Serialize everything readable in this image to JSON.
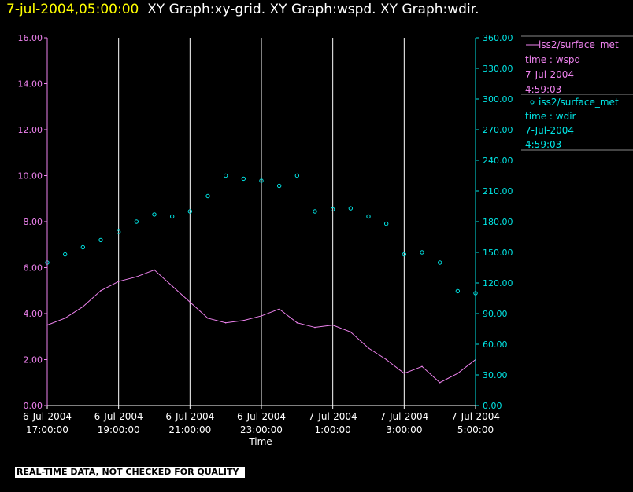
{
  "header": {
    "date": "7-jul-2004,05:00:00",
    "graphs": "XY Graph:xy-grid.  XY Graph:wspd.  XY Graph:wdir."
  },
  "banner": "REAL-TIME DATA, NOT CHECKED FOR QUALITY",
  "colors": {
    "wspd": "#ee82ee",
    "wdir": "#00e5e5",
    "grid": "#ffffff",
    "background": "#000000"
  },
  "chart_data": {
    "type": "line",
    "xlabel": "Time",
    "x_ticks": [
      [
        "6-Jul-2004",
        "17:00:00"
      ],
      [
        "6-Jul-2004",
        "19:00:00"
      ],
      [
        "6-Jul-2004",
        "21:00:00"
      ],
      [
        "6-Jul-2004",
        "23:00:00"
      ],
      [
        "7-Jul-2004",
        "1:00:00"
      ],
      [
        "7-Jul-2004",
        "3:00:00"
      ],
      [
        "7-Jul-2004",
        "5:00:00"
      ]
    ],
    "xlim": [
      "2004-07-06 17:00",
      "2004-07-07 05:00"
    ],
    "y_left": {
      "lim": [
        0,
        16
      ],
      "ticks": [
        "0.00",
        "2.00",
        "4.00",
        "6.00",
        "8.00",
        "10.00",
        "12.00",
        "14.00",
        "16.00"
      ]
    },
    "y_right": {
      "lim": [
        0,
        360
      ],
      "ticks": [
        "0.00",
        "30.00",
        "60.00",
        "90.00",
        "120.00",
        "150.00",
        "180.00",
        "210.00",
        "240.00",
        "270.00",
        "300.00",
        "330.00",
        "360.00"
      ]
    },
    "grid": "vertical",
    "legend_position": "right",
    "series": [
      {
        "name": "iss2/surface_met",
        "variable": "time : wspd",
        "date": "7-Jul-2004",
        "time": "4:59:03",
        "axis": "left",
        "style": "line",
        "x_hours": [
          0,
          0.5,
          1,
          1.5,
          2,
          2.5,
          3,
          3.5,
          4,
          4.5,
          5,
          5.5,
          6,
          6.5,
          7,
          7.5,
          8,
          8.5,
          9,
          9.5,
          10,
          10.5,
          11,
          11.5,
          12
        ],
        "values": [
          3.5,
          3.8,
          4.3,
          5.0,
          5.4,
          5.6,
          5.9,
          5.2,
          4.5,
          3.8,
          3.6,
          3.7,
          3.9,
          4.2,
          3.6,
          3.4,
          3.5,
          3.2,
          2.5,
          2.0,
          1.4,
          1.7,
          1.0,
          1.4,
          2.0
        ]
      },
      {
        "name": "iss2/surface_met",
        "variable": "time : wdir",
        "date": "7-Jul-2004",
        "time": "4:59:03",
        "axis": "right",
        "style": "scatter",
        "x_hours": [
          0,
          0.5,
          1,
          1.5,
          2,
          2.5,
          3,
          3.5,
          4,
          4.5,
          5,
          5.5,
          6,
          6.5,
          7,
          7.5,
          8,
          8.5,
          9,
          9.5,
          10,
          10.5,
          11,
          11.5,
          12
        ],
        "values": [
          140,
          148,
          155,
          162,
          170,
          180,
          187,
          185,
          190,
          205,
          225,
          222,
          220,
          215,
          225,
          190,
          192,
          193,
          185,
          178,
          148,
          150,
          140,
          112,
          110
        ]
      }
    ]
  }
}
